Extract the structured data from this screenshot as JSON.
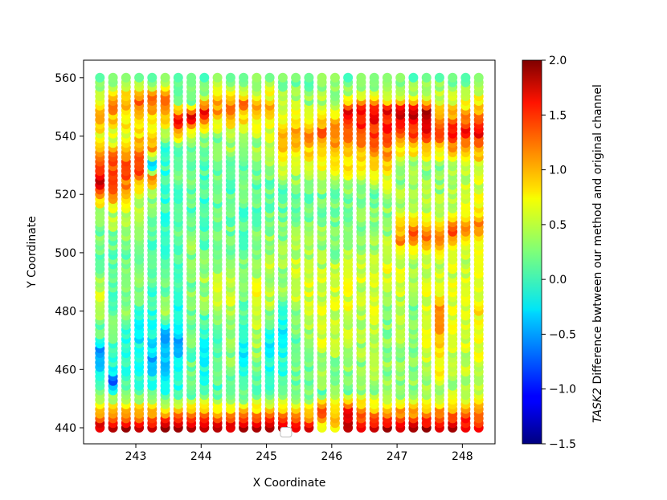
{
  "chart_data": {
    "type": "scatter",
    "title": "",
    "xlabel": "X Coordinate",
    "ylabel": "Y Coordinate",
    "xlim": [
      242.2,
      248.5
    ],
    "ylim": [
      434.5,
      566.0
    ],
    "xticks": [
      "243",
      "244",
      "245",
      "246",
      "247",
      "248"
    ],
    "yticks": [
      "440",
      "460",
      "480",
      "500",
      "520",
      "540",
      "560"
    ],
    "colorbar": {
      "label_italic": "TASK2",
      "label_rest": " Difference bwtween our method and original channel",
      "range": [
        -1.5,
        2.0
      ],
      "ticks": [
        "2.0",
        "1.5",
        "1.0",
        "0.5",
        "0.0",
        "−0.5",
        "−1.0",
        "−1.5"
      ],
      "colormap": "jet"
    },
    "columns_x": [
      242.45,
      242.65,
      242.85,
      243.05,
      243.25,
      243.45,
      243.65,
      243.85,
      244.05,
      244.25,
      244.45,
      244.65,
      244.85,
      245.05,
      245.25,
      245.45,
      245.65,
      245.85,
      246.05,
      246.25,
      246.45,
      246.65,
      246.85,
      247.05,
      247.25,
      247.45,
      247.65,
      247.85,
      248.05,
      248.25
    ],
    "y_range": [
      440,
      560
    ],
    "y_step": 1.6,
    "column_profiles": [
      [
        [
          440,
          1.8
        ],
        [
          446,
          0.9
        ],
        [
          452,
          0.2
        ],
        [
          466,
          -0.6
        ],
        [
          472,
          0.1
        ],
        [
          486,
          0.5
        ],
        [
          500,
          0.1
        ],
        [
          515,
          0.4
        ],
        [
          524,
          1.7
        ],
        [
          532,
          1.3
        ],
        [
          540,
          0.6
        ],
        [
          548,
          1.0
        ],
        [
          554,
          0.4
        ],
        [
          560,
          0.2
        ]
      ],
      [
        [
          440,
          1.8
        ],
        [
          446,
          0.9
        ],
        [
          452,
          0.2
        ],
        [
          456,
          -0.7
        ],
        [
          462,
          0.0
        ],
        [
          480,
          0.2
        ],
        [
          500,
          0.1
        ],
        [
          515,
          0.5
        ],
        [
          524,
          1.5
        ],
        [
          534,
          1.2
        ],
        [
          540,
          0.5
        ],
        [
          550,
          1.1
        ],
        [
          560,
          0.2
        ]
      ],
      [
        [
          440,
          1.8
        ],
        [
          446,
          0.9
        ],
        [
          452,
          0.2
        ],
        [
          466,
          -0.2
        ],
        [
          482,
          0.3
        ],
        [
          500,
          0.2
        ],
        [
          518,
          0.6
        ],
        [
          526,
          1.3
        ],
        [
          534,
          1.2
        ],
        [
          542,
          0.6
        ],
        [
          552,
          1.0
        ],
        [
          560,
          0.2
        ]
      ],
      [
        [
          440,
          1.8
        ],
        [
          446,
          0.9
        ],
        [
          452,
          0.1
        ],
        [
          470,
          -0.2
        ],
        [
          486,
          0.2
        ],
        [
          500,
          0.2
        ],
        [
          520,
          0.4
        ],
        [
          527,
          1.3
        ],
        [
          536,
          1.1
        ],
        [
          544,
          0.6
        ],
        [
          552,
          1.2
        ],
        [
          560,
          0.2
        ]
      ],
      [
        [
          440,
          1.8
        ],
        [
          446,
          0.9
        ],
        [
          452,
          0.1
        ],
        [
          464,
          -0.4
        ],
        [
          478,
          0.0
        ],
        [
          500,
          0.1
        ],
        [
          520,
          0.3
        ],
        [
          526,
          1.2
        ],
        [
          530,
          -0.5
        ],
        [
          536,
          1.0
        ],
        [
          544,
          0.5
        ],
        [
          552,
          1.3
        ],
        [
          560,
          0.2
        ]
      ],
      [
        [
          440,
          1.8
        ],
        [
          446,
          0.9
        ],
        [
          452,
          0.0
        ],
        [
          472,
          -0.6
        ],
        [
          480,
          0.3
        ],
        [
          500,
          0.1
        ],
        [
          520,
          0.0
        ],
        [
          535,
          0.0
        ],
        [
          540,
          0.3
        ],
        [
          552,
          1.3
        ],
        [
          560,
          0.2
        ]
      ],
      [
        [
          440,
          1.8
        ],
        [
          446,
          0.9
        ],
        [
          452,
          0.0
        ],
        [
          470,
          -0.4
        ],
        [
          486,
          0.0
        ],
        [
          500,
          0.1
        ],
        [
          518,
          0.1
        ],
        [
          536,
          0.2
        ],
        [
          546,
          1.7
        ],
        [
          552,
          0.3
        ],
        [
          560,
          0.2
        ]
      ],
      [
        [
          440,
          1.8
        ],
        [
          446,
          0.9
        ],
        [
          452,
          0.1
        ],
        [
          476,
          0.2
        ],
        [
          500,
          0.3
        ],
        [
          520,
          0.1
        ],
        [
          540,
          0.3
        ],
        [
          547,
          1.8
        ],
        [
          552,
          0.3
        ],
        [
          560,
          0.2
        ]
      ],
      [
        [
          440,
          1.8
        ],
        [
          446,
          0.9
        ],
        [
          452,
          0.1
        ],
        [
          466,
          -0.2
        ],
        [
          488,
          0.4
        ],
        [
          500,
          0.2
        ],
        [
          520,
          0.0
        ],
        [
          540,
          0.2
        ],
        [
          548,
          1.7
        ],
        [
          554,
          0.4
        ],
        [
          560,
          0.2
        ]
      ],
      [
        [
          440,
          1.8
        ],
        [
          446,
          0.9
        ],
        [
          452,
          0.1
        ],
        [
          468,
          0.1
        ],
        [
          486,
          0.6
        ],
        [
          500,
          0.2
        ],
        [
          520,
          0.1
        ],
        [
          540,
          0.3
        ],
        [
          550,
          1.1
        ],
        [
          560,
          0.2
        ]
      ],
      [
        [
          440,
          1.8
        ],
        [
          446,
          0.9
        ],
        [
          452,
          0.2
        ],
        [
          474,
          0.4
        ],
        [
          490,
          0.5
        ],
        [
          500,
          0.3
        ],
        [
          520,
          0.1
        ],
        [
          540,
          0.4
        ],
        [
          551,
          1.2
        ],
        [
          560,
          0.2
        ]
      ],
      [
        [
          440,
          1.8
        ],
        [
          446,
          0.9
        ],
        [
          452,
          0.1
        ],
        [
          464,
          -0.2
        ],
        [
          480,
          0.2
        ],
        [
          500,
          0.2
        ],
        [
          520,
          0.1
        ],
        [
          540,
          0.3
        ],
        [
          551,
          1.2
        ],
        [
          560,
          0.2
        ]
      ],
      [
        [
          440,
          1.8
        ],
        [
          446,
          0.9
        ],
        [
          452,
          0.1
        ],
        [
          470,
          0.4
        ],
        [
          486,
          0.6
        ],
        [
          500,
          0.3
        ],
        [
          520,
          0.1
        ],
        [
          540,
          0.4
        ],
        [
          550,
          1.0
        ],
        [
          560,
          0.2
        ]
      ],
      [
        [
          440,
          1.8
        ],
        [
          446,
          0.9
        ],
        [
          452,
          0.0
        ],
        [
          470,
          -0.2
        ],
        [
          484,
          0.5
        ],
        [
          500,
          0.4
        ],
        [
          520,
          0.1
        ],
        [
          540,
          0.5
        ],
        [
          550,
          1.0
        ],
        [
          560,
          0.2
        ]
      ],
      [
        [
          440,
          1.8
        ],
        [
          446,
          0.9
        ],
        [
          452,
          0.1
        ],
        [
          472,
          -0.2
        ],
        [
          490,
          0.4
        ],
        [
          500,
          0.3
        ],
        [
          520,
          0.1
        ],
        [
          541,
          1.0
        ],
        [
          550,
          0.5
        ],
        [
          560,
          0.2
        ]
      ],
      [
        [
          440,
          1.7
        ],
        [
          446,
          0.9
        ],
        [
          452,
          0.2
        ],
        [
          474,
          0.2
        ],
        [
          492,
          0.6
        ],
        [
          500,
          0.4
        ],
        [
          520,
          0.1
        ],
        [
          542,
          1.0
        ],
        [
          550,
          0.5
        ],
        [
          560,
          0.2
        ]
      ],
      [
        [
          440,
          1.6
        ],
        [
          446,
          0.9
        ],
        [
          452,
          0.2
        ],
        [
          470,
          0.3
        ],
        [
          490,
          0.6
        ],
        [
          500,
          0.4
        ],
        [
          520,
          0.1
        ],
        [
          542,
          1.1
        ],
        [
          550,
          0.4
        ],
        [
          560,
          0.2
        ]
      ],
      [
        [
          440,
          0.6
        ],
        [
          446,
          1.5
        ],
        [
          452,
          0.2
        ],
        [
          476,
          0.6
        ],
        [
          492,
          0.5
        ],
        [
          500,
          0.4
        ],
        [
          520,
          0.2
        ],
        [
          542,
          1.2
        ],
        [
          550,
          0.5
        ],
        [
          560,
          0.2
        ]
      ],
      [
        [
          440,
          0.8
        ],
        [
          446,
          0.9
        ],
        [
          452,
          0.2
        ],
        [
          478,
          0.5
        ],
        [
          494,
          0.5
        ],
        [
          500,
          0.3
        ],
        [
          520,
          0.2
        ],
        [
          542,
          1.3
        ],
        [
          550,
          0.5
        ],
        [
          560,
          0.2
        ]
      ],
      [
        [
          440,
          1.7
        ],
        [
          446,
          1.8
        ],
        [
          452,
          0.2
        ],
        [
          480,
          0.6
        ],
        [
          496,
          0.5
        ],
        [
          500,
          0.4
        ],
        [
          520,
          0.2
        ],
        [
          542,
          1.3
        ],
        [
          549,
          1.6
        ],
        [
          554,
          0.5
        ],
        [
          560,
          0.2
        ]
      ],
      [
        [
          440,
          1.5
        ],
        [
          446,
          1.2
        ],
        [
          452,
          0.3
        ],
        [
          482,
          0.4
        ],
        [
          496,
          0.6
        ],
        [
          500,
          0.4
        ],
        [
          520,
          0.2
        ],
        [
          542,
          1.3
        ],
        [
          549,
          1.6
        ],
        [
          554,
          0.5
        ],
        [
          560,
          0.2
        ]
      ],
      [
        [
          440,
          1.8
        ],
        [
          446,
          0.9
        ],
        [
          452,
          0.3
        ],
        [
          484,
          0.6
        ],
        [
          498,
          0.4
        ],
        [
          500,
          0.4
        ],
        [
          520,
          0.2
        ],
        [
          542,
          1.4
        ],
        [
          549,
          1.6
        ],
        [
          554,
          0.5
        ],
        [
          560,
          0.2
        ]
      ],
      [
        [
          440,
          1.8
        ],
        [
          446,
          0.9
        ],
        [
          452,
          0.3
        ],
        [
          480,
          0.3
        ],
        [
          496,
          0.6
        ],
        [
          500,
          0.4
        ],
        [
          520,
          0.3
        ],
        [
          542,
          1.4
        ],
        [
          549,
          1.6
        ],
        [
          554,
          0.5
        ],
        [
          560,
          0.2
        ]
      ],
      [
        [
          440,
          1.8
        ],
        [
          446,
          1.0
        ],
        [
          452,
          0.3
        ],
        [
          478,
          0.4
        ],
        [
          500,
          0.6
        ],
        [
          505,
          1.2
        ],
        [
          515,
          0.4
        ],
        [
          530,
          0.3
        ],
        [
          542,
          1.4
        ],
        [
          549,
          1.8
        ],
        [
          554,
          0.5
        ],
        [
          560,
          0.2
        ]
      ],
      [
        [
          440,
          1.8
        ],
        [
          446,
          1.0
        ],
        [
          452,
          0.3
        ],
        [
          476,
          0.2
        ],
        [
          500,
          0.5
        ],
        [
          506,
          1.3
        ],
        [
          515,
          0.4
        ],
        [
          530,
          0.3
        ],
        [
          542,
          1.4
        ],
        [
          549,
          1.8
        ],
        [
          554,
          0.5
        ],
        [
          560,
          0.2
        ]
      ],
      [
        [
          440,
          1.8
        ],
        [
          446,
          1.0
        ],
        [
          452,
          0.4
        ],
        [
          480,
          0.6
        ],
        [
          500,
          0.5
        ],
        [
          506,
          1.3
        ],
        [
          515,
          0.4
        ],
        [
          530,
          0.3
        ],
        [
          542,
          1.5
        ],
        [
          549,
          1.8
        ],
        [
          554,
          0.5
        ],
        [
          560,
          0.2
        ]
      ],
      [
        [
          440,
          1.8
        ],
        [
          446,
          1.1
        ],
        [
          452,
          0.4
        ],
        [
          478,
          1.2
        ],
        [
          490,
          0.5
        ],
        [
          500,
          0.5
        ],
        [
          506,
          1.3
        ],
        [
          515,
          0.4
        ],
        [
          530,
          0.3
        ],
        [
          542,
          1.5
        ],
        [
          552,
          0.6
        ],
        [
          560,
          0.2
        ]
      ],
      [
        [
          440,
          1.8
        ],
        [
          446,
          1.1
        ],
        [
          452,
          0.4
        ],
        [
          480,
          0.6
        ],
        [
          500,
          0.5
        ],
        [
          507,
          1.3
        ],
        [
          515,
          0.5
        ],
        [
          530,
          0.4
        ],
        [
          542,
          1.5
        ],
        [
          552,
          0.6
        ],
        [
          560,
          0.2
        ]
      ],
      [
        [
          440,
          1.7
        ],
        [
          446,
          1.2
        ],
        [
          452,
          0.4
        ],
        [
          480,
          0.6
        ],
        [
          500,
          0.5
        ],
        [
          508,
          1.2
        ],
        [
          515,
          0.6
        ],
        [
          530,
          0.4
        ],
        [
          542,
          1.6
        ],
        [
          552,
          0.6
        ],
        [
          560,
          0.2
        ]
      ],
      [
        [
          440,
          1.6
        ],
        [
          446,
          1.2
        ],
        [
          452,
          0.4
        ],
        [
          480,
          0.7
        ],
        [
          500,
          0.6
        ],
        [
          510,
          1.1
        ],
        [
          518,
          0.6
        ],
        [
          530,
          0.5
        ],
        [
          542,
          1.7
        ],
        [
          552,
          0.7
        ],
        [
          560,
          0.2
        ]
      ]
    ]
  },
  "legend_marker": {
    "x": 245.3,
    "y": 438.5
  }
}
